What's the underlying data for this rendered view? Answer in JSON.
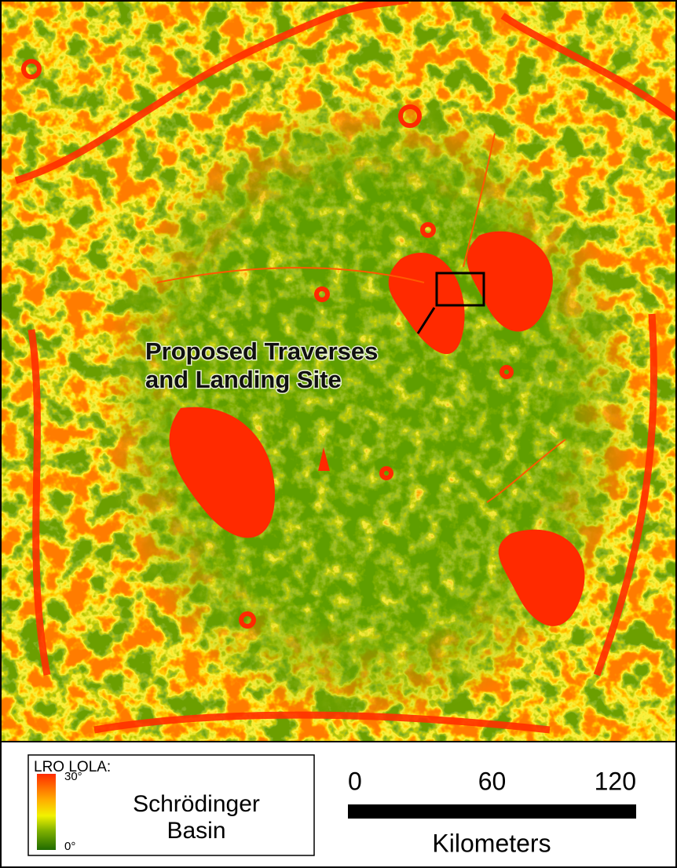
{
  "annotation": {
    "lines": [
      "Proposed Traverses",
      "and Landing Site"
    ]
  },
  "legend": {
    "title": "LRO LOLA:",
    "max_label": "30°",
    "min_label": "0°",
    "name_lines": [
      "Schrödinger",
      "Basin"
    ]
  },
  "scale_bar": {
    "ticks": [
      0,
      60,
      120
    ],
    "unit": "Kilometers"
  }
}
